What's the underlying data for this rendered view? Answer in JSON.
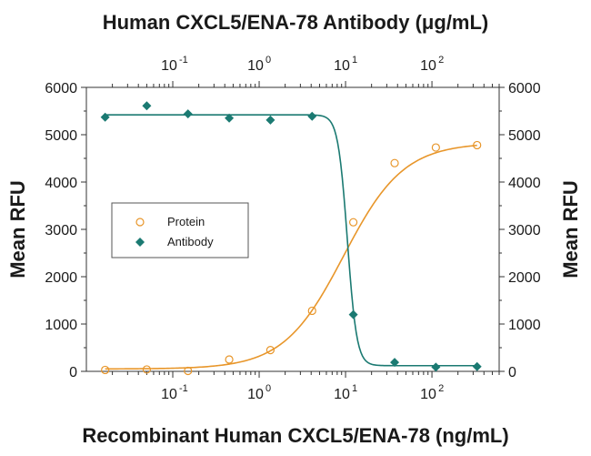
{
  "chart_data": {
    "type": "scatter",
    "title": "Human CXCL5/ENA-78 Antibody (μg/mL)",
    "xlabel": "Recombinant Human CXCL5/ENA-78 (ng/mL)",
    "ylabel_left": "Mean RFU",
    "ylabel_right": "Mean RFU",
    "x_scale": "log",
    "xlim": [
      0.01,
      600
    ],
    "ylim": [
      0,
      6000
    ],
    "y_ticks": [
      0,
      1000,
      2000,
      3000,
      4000,
      5000,
      6000
    ],
    "y_tick_labels": [
      "0",
      "1000",
      "2000",
      "3000",
      "4000",
      "5000",
      "6000"
    ],
    "x_ticks": [
      0.1,
      1,
      10,
      100
    ],
    "x_tick_labels": [
      {
        "base": "10",
        "exp": "-1"
      },
      {
        "base": "10",
        "exp": "0"
      },
      {
        "base": "10",
        "exp": "1"
      },
      {
        "base": "10",
        "exp": "2"
      }
    ],
    "top_axis_ticks": [
      0.1,
      1,
      10,
      100
    ],
    "grid": false,
    "legend_position": "center-left",
    "series": [
      {
        "name": "Protein",
        "marker": "open-circle",
        "color": "#E8962A",
        "x": [
          0.0165,
          0.05,
          0.15,
          0.45,
          1.35,
          4.1,
          12.3,
          37,
          111,
          333
        ],
        "y": [
          30,
          40,
          10,
          250,
          450,
          1280,
          3150,
          4400,
          4730,
          4780
        ],
        "fit": {
          "bottom": 50,
          "top": 4830,
          "ec50": 9.5,
          "hill": 1.25
        }
      },
      {
        "name": "Antibody",
        "marker": "filled-diamond",
        "color": "#1B7A72",
        "x": [
          0.0165,
          0.05,
          0.15,
          0.45,
          1.35,
          4.1,
          12.3,
          37,
          111,
          333
        ],
        "y": [
          5370,
          5610,
          5440,
          5350,
          5310,
          5390,
          1200,
          190,
          90,
          100
        ],
        "fit": {
          "bottom": 120,
          "top": 5420,
          "ec50": 10.5,
          "hill": -8
        }
      }
    ]
  }
}
